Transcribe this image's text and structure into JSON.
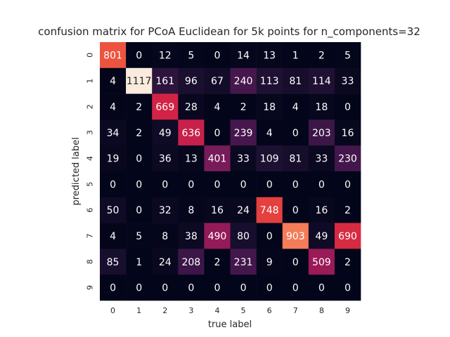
{
  "chart_data": {
    "type": "heatmap",
    "title": "confusion matrix for PCoA Euclidean for 5k points for n_components=32",
    "xlabel": "true label",
    "ylabel": "predicted label",
    "x_categories": [
      "0",
      "1",
      "2",
      "3",
      "4",
      "5",
      "6",
      "7",
      "8",
      "9"
    ],
    "y_categories": [
      "0",
      "1",
      "2",
      "3",
      "4",
      "5",
      "6",
      "7",
      "8",
      "9"
    ],
    "values": [
      [
        801,
        0,
        12,
        5,
        0,
        14,
        13,
        1,
        2,
        5
      ],
      [
        4,
        1117,
        161,
        96,
        67,
        240,
        113,
        81,
        114,
        33
      ],
      [
        4,
        2,
        669,
        28,
        4,
        2,
        18,
        4,
        18,
        0
      ],
      [
        34,
        2,
        49,
        636,
        0,
        239,
        4,
        0,
        203,
        16
      ],
      [
        19,
        0,
        36,
        13,
        401,
        33,
        109,
        81,
        33,
        230
      ],
      [
        0,
        0,
        0,
        0,
        0,
        0,
        0,
        0,
        0,
        0
      ],
      [
        50,
        0,
        32,
        8,
        16,
        24,
        748,
        0,
        16,
        2
      ],
      [
        4,
        5,
        8,
        38,
        490,
        80,
        0,
        903,
        49,
        690
      ],
      [
        85,
        1,
        24,
        208,
        2,
        231,
        9,
        0,
        509,
        2
      ],
      [
        0,
        0,
        0,
        0,
        0,
        0,
        0,
        0,
        0,
        0
      ]
    ],
    "colormap": "rocket",
    "colorbar": false,
    "value_range": [
      0,
      1117
    ]
  }
}
